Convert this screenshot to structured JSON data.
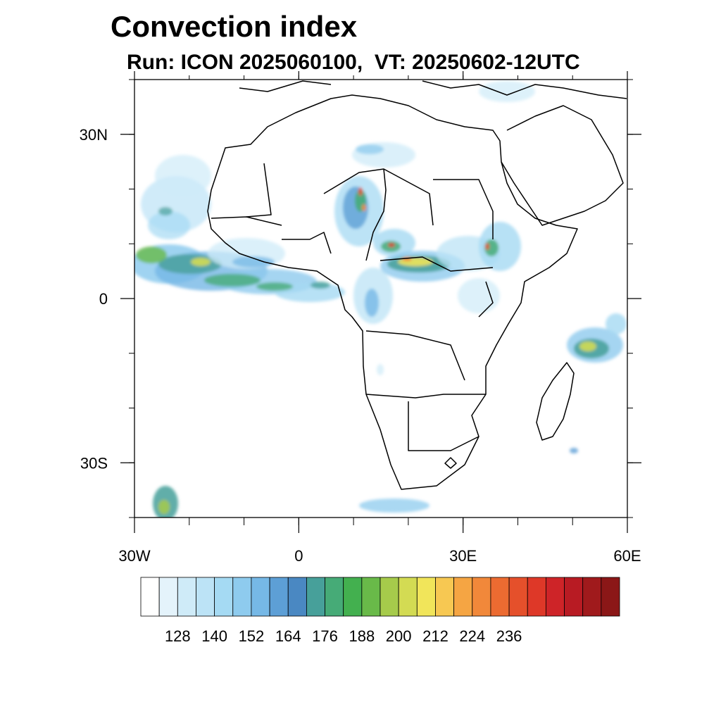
{
  "title": "Convection index",
  "subtitle": "Run: ICON 2025060100,  VT: 20250602-12UTC",
  "map": {
    "lon_range": [
      -30,
      60
    ],
    "lat_range": [
      -40,
      40
    ],
    "lon_ticks": [
      {
        "lon": -30,
        "label": "30W"
      },
      {
        "lon": 0,
        "label": "0"
      },
      {
        "lon": 30,
        "label": "30E"
      },
      {
        "lon": 60,
        "label": "60E"
      }
    ],
    "lat_ticks": [
      {
        "lat": 30,
        "label": "30N"
      },
      {
        "lat": 0,
        "label": "0"
      },
      {
        "lat": -30,
        "label": "30S"
      }
    ],
    "minor_lon_step": 10,
    "minor_lat_step": 10
  },
  "colorbar": {
    "labels": [
      "128",
      "140",
      "152",
      "164",
      "176",
      "188",
      "200",
      "212",
      "224",
      "236"
    ],
    "colors": [
      "#ffffff",
      "#e4f3fb",
      "#cfebf8",
      "#bce3f6",
      "#a5daf3",
      "#8ecbee",
      "#76b8e6",
      "#5d9fd6",
      "#4a88c2",
      "#47a09a",
      "#46ab77",
      "#43b04f",
      "#69ba49",
      "#a6cb4b",
      "#d3db53",
      "#f1e55a",
      "#f7c852",
      "#f5a543",
      "#f1883a",
      "#ec6b31",
      "#e5502b",
      "#de3828",
      "#ce2428",
      "#b81b23",
      "#a01a1c",
      "#8b1717"
    ]
  }
}
